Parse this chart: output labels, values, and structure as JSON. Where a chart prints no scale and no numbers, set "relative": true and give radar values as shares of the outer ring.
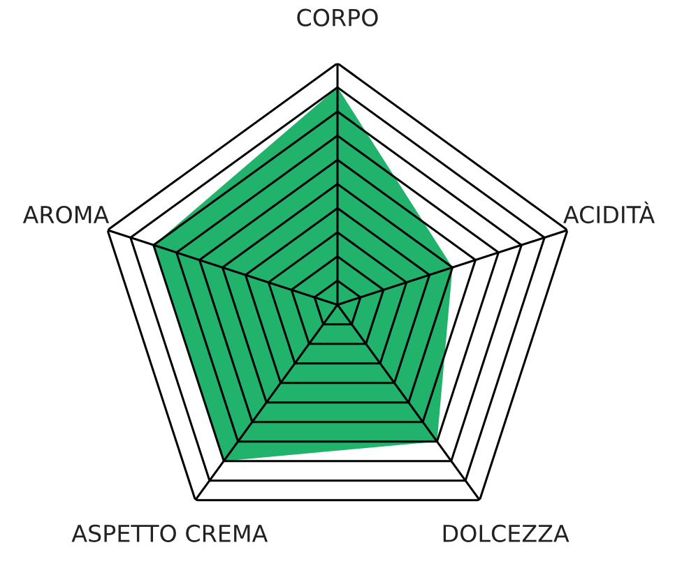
{
  "chart_data": {
    "type": "radar",
    "relative": true,
    "categories": [
      "CORPO",
      "ACIDITÀ",
      "DOLCEZZA",
      "ASPETTO CREMA",
      "AROMA"
    ],
    "series": [
      {
        "color": "#21b26b",
        "values": [
          0.9,
          0.5,
          0.7,
          0.8,
          0.8
        ]
      }
    ],
    "grid": true,
    "legend": false
  }
}
